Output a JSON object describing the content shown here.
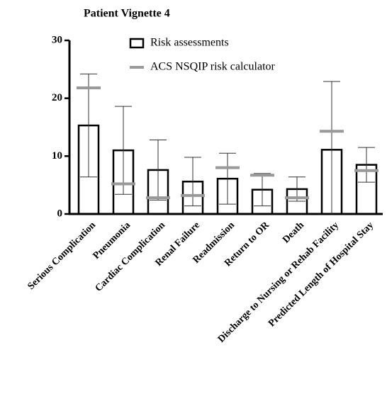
{
  "chart_data": {
    "type": "bar",
    "title": "Patient Vignette 4",
    "categories": [
      "Serious Complication",
      "Pneumonia",
      "Cardiac Complication",
      "Renal Failure",
      "Readmission",
      "Return to OR",
      "Death",
      "Discharge to Nursing or Rehab Facility",
      "Predicted Length of Hospital Stay"
    ],
    "series": [
      {
        "name": "Risk assessments",
        "color": "#000000",
        "values": [
          15.3,
          11.0,
          7.6,
          5.6,
          6.1,
          4.2,
          4.3,
          11.1,
          8.5
        ],
        "errors": [
          8.9,
          7.6,
          5.2,
          4.2,
          4.4,
          2.8,
          2.1,
          11.8,
          3.0
        ]
      },
      {
        "name": "ACS NSQIP risk calculator",
        "color": "#999999",
        "values": [
          21.8,
          5.2,
          2.8,
          3.2,
          8.0,
          6.7,
          2.8,
          14.3,
          7.5
        ]
      }
    ],
    "ylim": [
      0,
      30
    ],
    "yticks": [
      0,
      10,
      20,
      30
    ]
  }
}
